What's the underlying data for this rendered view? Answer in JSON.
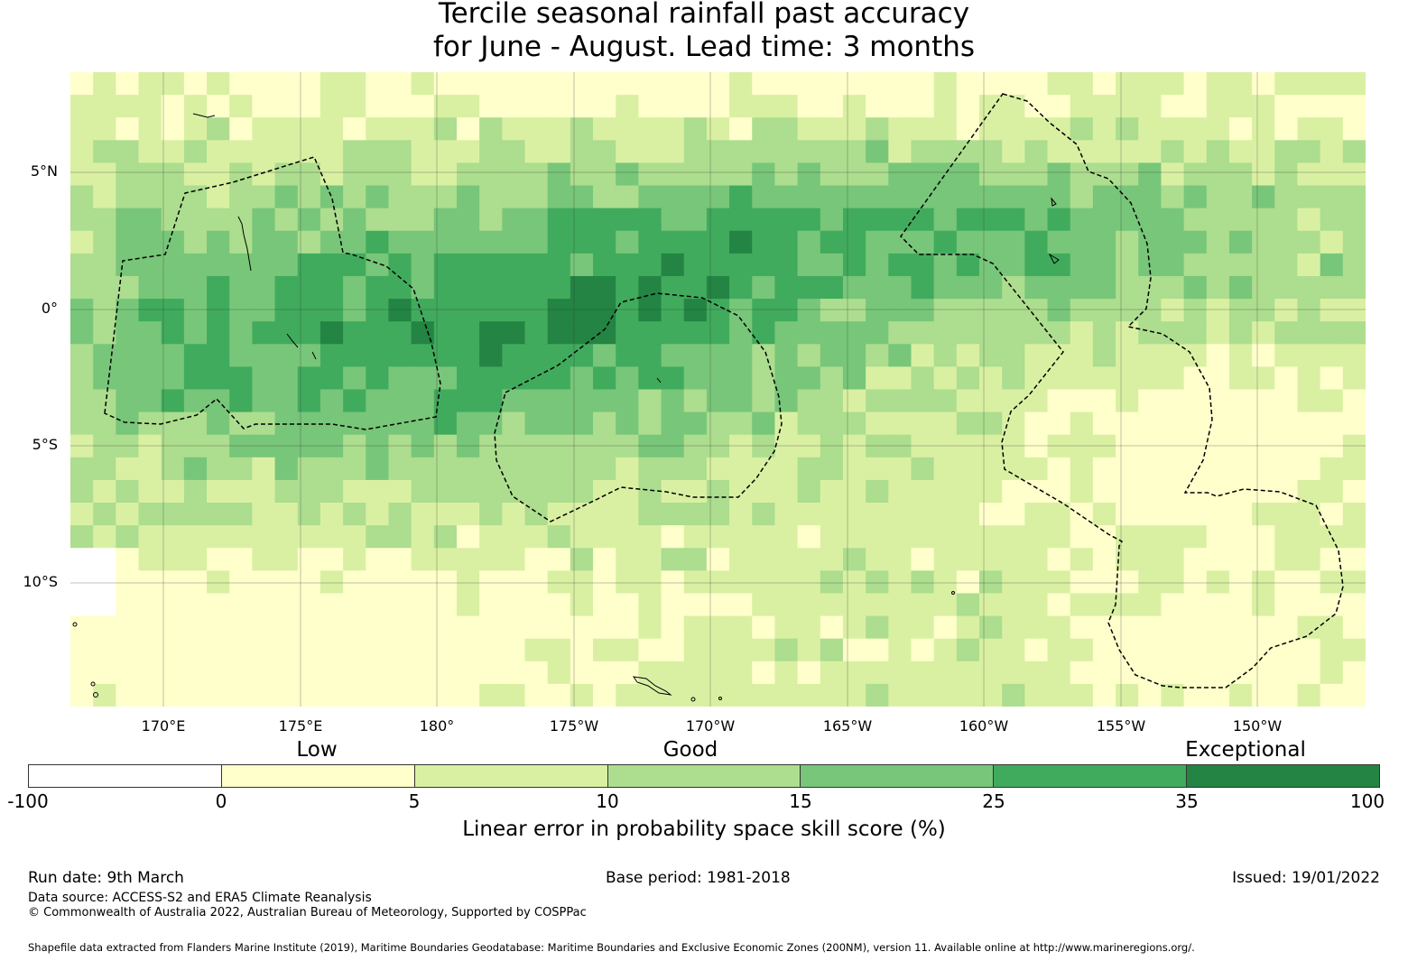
{
  "title": {
    "line1": "Tercile seasonal rainfall past accuracy",
    "line2": "for June - August. Lead time: 3 months"
  },
  "map": {
    "lat_labels": [
      "5°N",
      "0°",
      "5°S",
      "10°S"
    ],
    "lon_labels": [
      "170°E",
      "175°E",
      "180°",
      "175°W",
      "170°W",
      "165°W",
      "160°W",
      "155°W",
      "150°W"
    ],
    "colors": [
      "#ffffff",
      "#ffffcc",
      "#d9f0a3",
      "#addd8e",
      "#78c679",
      "#41ab5d",
      "#238443"
    ]
  },
  "legend": {
    "categories": [
      "Low",
      "Good",
      "Exceptional"
    ],
    "ticks": [
      "-100",
      "0",
      "5",
      "10",
      "15",
      "25",
      "35",
      "100"
    ],
    "label": "Linear error in probability space skill score (%)"
  },
  "footer": {
    "run_date": "Run date: 9th March",
    "base_period": "Base period: 1981-2018",
    "issued": "Issued: 19/01/2022",
    "data_source": "Data source: ACCESS-S2 and ERA5 Climate Reanalysis",
    "copyright": "© Commonwealth of Australia 2022, Australian Bureau of Meteorology, Supported by COSPPac",
    "shapefile": "Shapefile data extracted from Flanders Marine Institute (2019), Maritime Boundaries Geodatabase: Maritime Boundaries and Exclusive Economic Zones (200NM), version 11. Available online at http://www.marineregions.org/."
  }
}
